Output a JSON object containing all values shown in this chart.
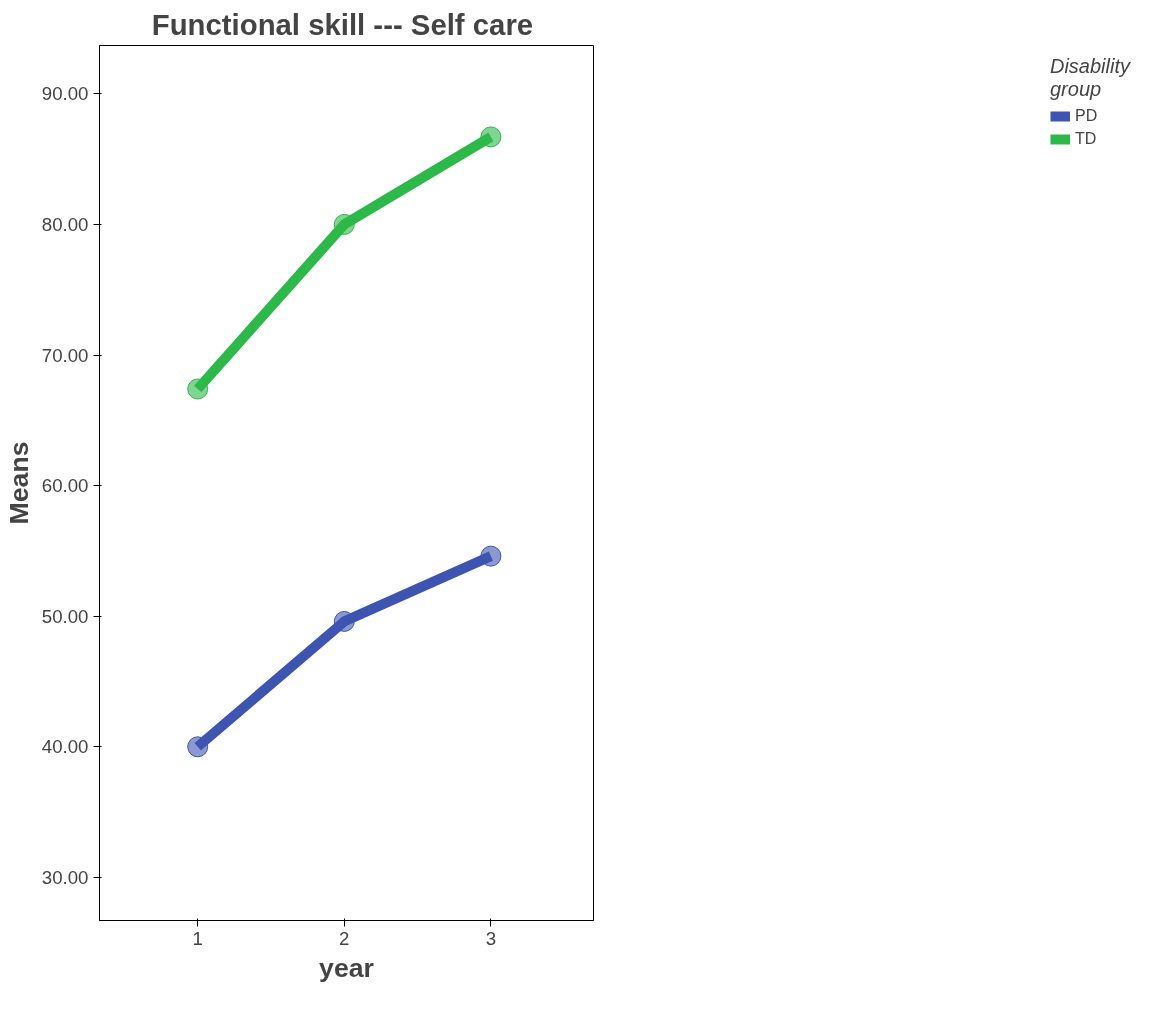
{
  "chart_data": {
    "type": "line",
    "title": "Functional skill ---  Self care",
    "xlabel": "year",
    "ylabel": "Means",
    "legend_title": "Disability\ngroup",
    "x": [
      1,
      2,
      3
    ],
    "series": [
      {
        "name": "PD",
        "color": "#3d55b0",
        "values": [
          40.0,
          49.6,
          54.6
        ]
      },
      {
        "name": "TD",
        "color": "#2db84a",
        "values": [
          67.4,
          80.0,
          86.7
        ]
      }
    ],
    "xlim": [
      0.33,
      3.7
    ],
    "xticks": [
      1,
      2,
      3
    ],
    "ylim": [
      26.7,
      93.7
    ],
    "yticks": [
      {
        "value": 30,
        "label": "30.00"
      },
      {
        "value": 40,
        "label": "40.00"
      },
      {
        "value": 50,
        "label": "50.00"
      },
      {
        "value": 60,
        "label": "60.00"
      },
      {
        "value": 70,
        "label": "70.00"
      },
      {
        "value": 80,
        "label": "80.00"
      },
      {
        "value": 90,
        "label": "90.00"
      }
    ],
    "grid": false,
    "legend": "top right",
    "marker": "circle",
    "line_style": "solid"
  }
}
